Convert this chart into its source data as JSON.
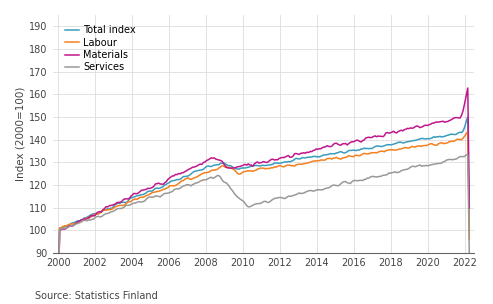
{
  "title": "",
  "ylabel": "Index (2000=100)",
  "xlabel": "",
  "source": "Source: Statistics Finland",
  "ylim": [
    90,
    195
  ],
  "yticks": [
    90,
    100,
    110,
    120,
    130,
    140,
    150,
    160,
    170,
    180,
    190
  ],
  "xlim_start": 1999.7,
  "xlim_end": 2022.5,
  "xticks": [
    2000,
    2002,
    2004,
    2006,
    2008,
    2010,
    2012,
    2014,
    2016,
    2018,
    2020,
    2022
  ],
  "colors": {
    "total": "#3b9dbd",
    "labour": "#f4801e",
    "materials": "#c0178c",
    "services": "#999999"
  },
  "legend_labels": [
    "Total index",
    "Labour",
    "Materials",
    "Services"
  ],
  "background_color": "#ffffff",
  "grid_color": "#dddddd"
}
